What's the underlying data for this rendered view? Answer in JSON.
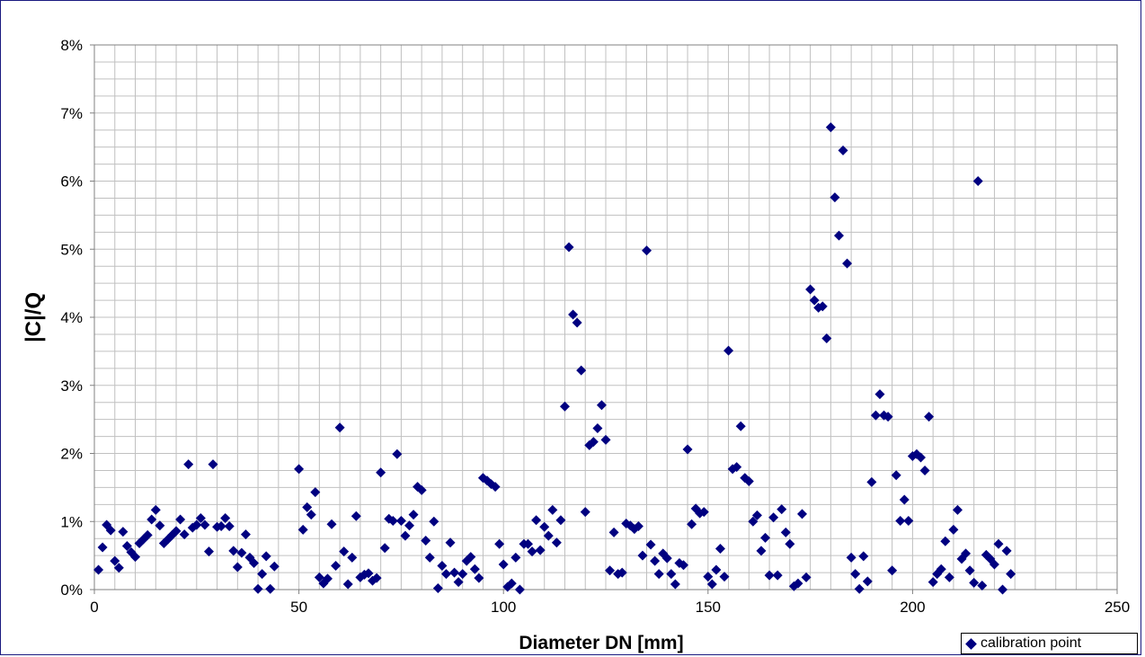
{
  "chart_data": {
    "type": "scatter",
    "xlabel": "Diameter DN [mm]",
    "ylabel": "|C|/Q",
    "xlim": [
      0,
      250
    ],
    "ylim": [
      0,
      8
    ],
    "x_ticks": [
      "0",
      "50",
      "100",
      "150",
      "200",
      "250"
    ],
    "y_ticks": [
      "0%",
      "1%",
      "2%",
      "3%",
      "4%",
      "5%",
      "6%",
      "7%",
      "8%"
    ],
    "grid": true,
    "legend_position": "bottom-right",
    "series": [
      {
        "name": "calibration point",
        "color": "#000080",
        "marker": "diamond",
        "points": [
          [
            1,
            0.29
          ],
          [
            2,
            0.62
          ],
          [
            3,
            0.95
          ],
          [
            4,
            0.87
          ],
          [
            5,
            0.42
          ],
          [
            6,
            0.32
          ],
          [
            7,
            0.85
          ],
          [
            8,
            0.64
          ],
          [
            9,
            0.55
          ],
          [
            10,
            0.48
          ],
          [
            11,
            0.68
          ],
          [
            12,
            0.74
          ],
          [
            13,
            0.8
          ],
          [
            14,
            1.03
          ],
          [
            15,
            1.17
          ],
          [
            16,
            0.94
          ],
          [
            17,
            0.68
          ],
          [
            18,
            0.74
          ],
          [
            19,
            0.8
          ],
          [
            20,
            0.86
          ],
          [
            21,
            1.03
          ],
          [
            22,
            0.81
          ],
          [
            23,
            1.84
          ],
          [
            24,
            0.91
          ],
          [
            25,
            0.95
          ],
          [
            26,
            1.05
          ],
          [
            27,
            0.95
          ],
          [
            28,
            0.56
          ],
          [
            29,
            1.84
          ],
          [
            30,
            0.92
          ],
          [
            31,
            0.93
          ],
          [
            32,
            1.05
          ],
          [
            33,
            0.93
          ],
          [
            34,
            0.57
          ],
          [
            35,
            0.33
          ],
          [
            36,
            0.54
          ],
          [
            37,
            0.81
          ],
          [
            38,
            0.47
          ],
          [
            39,
            0.39
          ],
          [
            40,
            0.01
          ],
          [
            41,
            0.23
          ],
          [
            42,
            0.49
          ],
          [
            43,
            0.01
          ],
          [
            44,
            0.34
          ],
          [
            50,
            1.77
          ],
          [
            51,
            0.88
          ],
          [
            52,
            1.21
          ],
          [
            53,
            1.1
          ],
          [
            54,
            1.43
          ],
          [
            55,
            0.18
          ],
          [
            56,
            0.09
          ],
          [
            57,
            0.16
          ],
          [
            58,
            0.96
          ],
          [
            59,
            0.35
          ],
          [
            60,
            2.38
          ],
          [
            61,
            0.56
          ],
          [
            62,
            0.08
          ],
          [
            63,
            0.47
          ],
          [
            64,
            1.08
          ],
          [
            65,
            0.18
          ],
          [
            66,
            0.22
          ],
          [
            67,
            0.24
          ],
          [
            68,
            0.13
          ],
          [
            69,
            0.17
          ],
          [
            70,
            1.72
          ],
          [
            71,
            0.61
          ],
          [
            72,
            1.04
          ],
          [
            73,
            1.01
          ],
          [
            74,
            1.99
          ],
          [
            75,
            1.01
          ],
          [
            76,
            0.79
          ],
          [
            77,
            0.94
          ],
          [
            78,
            1.1
          ],
          [
            79,
            1.51
          ],
          [
            80,
            1.46
          ],
          [
            81,
            0.72
          ],
          [
            82,
            0.47
          ],
          [
            83,
            1.0
          ],
          [
            84,
            0.02
          ],
          [
            85,
            0.35
          ],
          [
            86,
            0.23
          ],
          [
            87,
            0.69
          ],
          [
            88,
            0.25
          ],
          [
            89,
            0.11
          ],
          [
            90,
            0.23
          ],
          [
            91,
            0.42
          ],
          [
            92,
            0.48
          ],
          [
            93,
            0.3
          ],
          [
            94,
            0.17
          ],
          [
            95,
            1.64
          ],
          [
            96,
            1.6
          ],
          [
            97,
            1.55
          ],
          [
            98,
            1.51
          ],
          [
            99,
            0.67
          ],
          [
            100,
            0.37
          ],
          [
            101,
            0.04
          ],
          [
            102,
            0.09
          ],
          [
            103,
            0.47
          ],
          [
            104,
            0.0
          ],
          [
            105,
            0.67
          ],
          [
            106,
            0.67
          ],
          [
            107,
            0.56
          ],
          [
            108,
            1.02
          ],
          [
            109,
            0.58
          ],
          [
            110,
            0.92
          ],
          [
            111,
            0.79
          ],
          [
            112,
            1.17
          ],
          [
            113,
            0.69
          ],
          [
            114,
            1.02
          ],
          [
            115,
            2.69
          ],
          [
            116,
            5.03
          ],
          [
            117,
            4.04
          ],
          [
            118,
            3.92
          ],
          [
            119,
            3.22
          ],
          [
            120,
            1.14
          ],
          [
            121,
            2.12
          ],
          [
            122,
            2.17
          ],
          [
            123,
            2.37
          ],
          [
            124,
            2.71
          ],
          [
            125,
            2.2
          ],
          [
            126,
            0.28
          ],
          [
            127,
            0.84
          ],
          [
            128,
            0.23
          ],
          [
            129,
            0.25
          ],
          [
            130,
            0.97
          ],
          [
            131,
            0.94
          ],
          [
            132,
            0.89
          ],
          [
            133,
            0.93
          ],
          [
            134,
            0.5
          ],
          [
            135,
            4.98
          ],
          [
            136,
            0.66
          ],
          [
            137,
            0.42
          ],
          [
            138,
            0.23
          ],
          [
            139,
            0.53
          ],
          [
            140,
            0.46
          ],
          [
            141,
            0.23
          ],
          [
            142,
            0.08
          ],
          [
            143,
            0.39
          ],
          [
            144,
            0.36
          ],
          [
            145,
            2.06
          ],
          [
            146,
            0.96
          ],
          [
            147,
            1.19
          ],
          [
            148,
            1.12
          ],
          [
            149,
            1.14
          ],
          [
            150,
            0.19
          ],
          [
            151,
            0.08
          ],
          [
            152,
            0.29
          ],
          [
            153,
            0.6
          ],
          [
            154,
            0.19
          ],
          [
            155,
            3.51
          ],
          [
            156,
            1.77
          ],
          [
            157,
            1.8
          ],
          [
            158,
            2.4
          ],
          [
            159,
            1.64
          ],
          [
            160,
            1.59
          ],
          [
            161,
            1.0
          ],
          [
            162,
            1.09
          ],
          [
            163,
            0.57
          ],
          [
            164,
            0.76
          ],
          [
            165,
            0.21
          ],
          [
            166,
            1.06
          ],
          [
            167,
            0.21
          ],
          [
            168,
            1.18
          ],
          [
            169,
            0.84
          ],
          [
            170,
            0.67
          ],
          [
            171,
            0.05
          ],
          [
            172,
            0.09
          ],
          [
            173,
            1.11
          ],
          [
            174,
            0.18
          ],
          [
            175,
            4.41
          ],
          [
            176,
            4.25
          ],
          [
            177,
            4.14
          ],
          [
            178,
            4.16
          ],
          [
            179,
            3.69
          ],
          [
            180,
            6.79
          ],
          [
            181,
            5.76
          ],
          [
            182,
            5.2
          ],
          [
            183,
            6.45
          ],
          [
            184,
            4.79
          ],
          [
            185,
            0.47
          ],
          [
            186,
            0.23
          ],
          [
            187,
            0.01
          ],
          [
            188,
            0.49
          ],
          [
            189,
            0.12
          ],
          [
            190,
            1.58
          ],
          [
            191,
            2.56
          ],
          [
            192,
            2.87
          ],
          [
            193,
            2.56
          ],
          [
            194,
            2.54
          ],
          [
            195,
            0.28
          ],
          [
            196,
            1.68
          ],
          [
            197,
            1.01
          ],
          [
            198,
            1.32
          ],
          [
            199,
            1.01
          ],
          [
            200,
            1.96
          ],
          [
            201,
            1.99
          ],
          [
            202,
            1.94
          ],
          [
            203,
            1.75
          ],
          [
            204,
            2.54
          ],
          [
            205,
            0.11
          ],
          [
            206,
            0.23
          ],
          [
            207,
            0.3
          ],
          [
            208,
            0.71
          ],
          [
            209,
            0.18
          ],
          [
            210,
            0.88
          ],
          [
            211,
            1.17
          ],
          [
            212,
            0.45
          ],
          [
            213,
            0.53
          ],
          [
            214,
            0.28
          ],
          [
            215,
            0.1
          ],
          [
            216,
            6.0
          ],
          [
            217,
            0.06
          ],
          [
            218,
            0.51
          ],
          [
            219,
            0.45
          ],
          [
            220,
            0.37
          ],
          [
            221,
            0.67
          ],
          [
            222,
            0.0
          ],
          [
            223,
            0.57
          ],
          [
            224,
            0.23
          ]
        ]
      }
    ]
  }
}
